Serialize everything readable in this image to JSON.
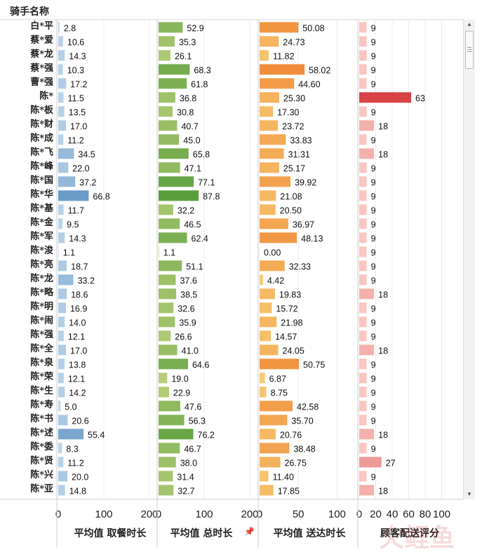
{
  "header": {
    "title": "骑手名称"
  },
  "chart_data": {
    "type": "bar",
    "orientation": "horizontal",
    "grid": true,
    "categories": [
      "白*平",
      "蔡*爱",
      "蔡*龙",
      "蔡*强",
      "曹*强",
      "陈*",
      "陈*板",
      "陈*财",
      "陈*成",
      "陈*飞",
      "陈*峰",
      "陈*国",
      "陈*华",
      "陈*基",
      "陈*金",
      "陈*军",
      "陈*浚",
      "陈*亮",
      "陈*龙",
      "陈*略",
      "陈*明",
      "陈*闹",
      "陈*强",
      "陈*全",
      "陈*泉",
      "陈*荣",
      "陈*生",
      "陈*寿",
      "陈*书",
      "陈*述",
      "陈*委",
      "陈*贤",
      "陈*兴",
      "陈*亚"
    ],
    "series": [
      {
        "name": "平均值 取餐时长",
        "xlim": [
          0,
          200
        ],
        "ticks": [
          0,
          100,
          200
        ],
        "labels": [
          "2.8",
          "10.6",
          "14.3",
          "10.3",
          "17.2",
          "11.5",
          "13.5",
          "17.0",
          "11.2",
          "34.5",
          "22.0",
          "37.2",
          "66.8",
          "11.7",
          "9.5",
          "14.3",
          "1.1",
          "18.7",
          "33.2",
          "18.6",
          "16.9",
          "14.0",
          "12.1",
          "17.0",
          "13.8",
          "12.1",
          "14.2",
          "5.0",
          "20.6",
          "55.4",
          "8.3",
          "11.2",
          "20.0",
          "14.8"
        ],
        "values": [
          2.8,
          10.6,
          14.3,
          10.3,
          17.2,
          11.5,
          13.5,
          17.0,
          11.2,
          34.5,
          22.0,
          37.2,
          66.8,
          11.7,
          9.5,
          14.3,
          1.1,
          18.7,
          33.2,
          18.6,
          16.9,
          14.0,
          12.1,
          17.0,
          13.8,
          12.1,
          14.2,
          5.0,
          20.6,
          55.4,
          8.3,
          11.2,
          20.0,
          14.8
        ]
      },
      {
        "name": "平均值 总时长",
        "xlim": [
          0,
          200
        ],
        "ticks": [
          0,
          100,
          200
        ],
        "labels": [
          "52.9",
          "35.3",
          "26.1",
          "68.3",
          "61.8",
          "36.8",
          "30.8",
          "40.7",
          "45.0",
          "65.8",
          "47.1",
          "77.1",
          "87.8",
          "32.2",
          "46.5",
          "62.4",
          "1.1",
          "51.1",
          "37.6",
          "38.5",
          "32.6",
          "35.9",
          "26.6",
          "41.0",
          "64.6",
          "19.0",
          "22.9",
          "47.6",
          "56.3",
          "76.2",
          "46.7",
          "38.0",
          "31.4",
          "32.7"
        ],
        "values": [
          52.9,
          35.3,
          26.1,
          68.3,
          61.8,
          36.8,
          30.8,
          40.7,
          45.0,
          65.8,
          47.1,
          77.1,
          87.8,
          32.2,
          46.5,
          62.4,
          1.1,
          51.1,
          37.6,
          38.5,
          32.6,
          35.9,
          26.6,
          41.0,
          64.6,
          19.0,
          22.9,
          47.6,
          56.3,
          76.2,
          46.7,
          38.0,
          31.4,
          32.7
        ]
      },
      {
        "name": "平均值 送达时长",
        "xlim": [
          0,
          125
        ],
        "ticks": [
          0,
          50,
          100
        ],
        "labels": [
          "50.08",
          "24.73",
          "11.82",
          "58.02",
          "44.60",
          "25.30",
          "17.30",
          "23.72",
          "33.83",
          "31.31",
          "25.17",
          "39.92",
          "21.08",
          "20.50",
          "36.97",
          "48.13",
          "0.00",
          "32.33",
          "4.42",
          "19.83",
          "15.72",
          "21.98",
          "14.57",
          "24.05",
          "50.75",
          "6.87",
          "8.75",
          "42.58",
          "35.70",
          "20.76",
          "38.48",
          "26.75",
          "11.40",
          "17.85"
        ],
        "values": [
          50.08,
          24.73,
          11.82,
          58.02,
          44.6,
          25.3,
          17.3,
          23.72,
          33.83,
          31.31,
          25.17,
          39.92,
          21.08,
          20.5,
          36.97,
          48.13,
          0.0,
          32.33,
          4.42,
          19.83,
          15.72,
          21.98,
          14.57,
          24.05,
          50.75,
          6.87,
          8.75,
          42.58,
          35.7,
          20.76,
          38.48,
          26.75,
          11.4,
          17.85
        ]
      },
      {
        "name": "顾客配送评分",
        "xlim": [
          0,
          120
        ],
        "ticks": [
          0,
          20,
          40,
          60,
          80,
          100
        ],
        "labels": [
          "9",
          "9",
          "9",
          "9",
          "9",
          "63",
          "9",
          "18",
          "9",
          "18",
          "9",
          "9",
          "9",
          "9",
          "9",
          "9",
          "9",
          "9",
          "9",
          "18",
          "9",
          "9",
          "9",
          "18",
          "9",
          "9",
          "9",
          "9",
          "9",
          "18",
          "9",
          "27",
          "9",
          "18"
        ],
        "values": [
          9,
          9,
          9,
          9,
          9,
          63,
          9,
          18,
          9,
          18,
          9,
          9,
          9,
          9,
          9,
          9,
          9,
          9,
          9,
          18,
          9,
          9,
          9,
          18,
          9,
          9,
          9,
          9,
          9,
          18,
          9,
          27,
          9,
          18
        ]
      }
    ]
  },
  "colors": {
    "blue_light": "#c6dbef",
    "blue_dark": "#6b9bc7",
    "green_light": "#cfd98a",
    "green_dark": "#5a9e3c",
    "orange_light": "#f8d27a",
    "orange_dark": "#f08c3a",
    "red_light": "#f9c6c0",
    "red_dark": "#d94346"
  }
}
